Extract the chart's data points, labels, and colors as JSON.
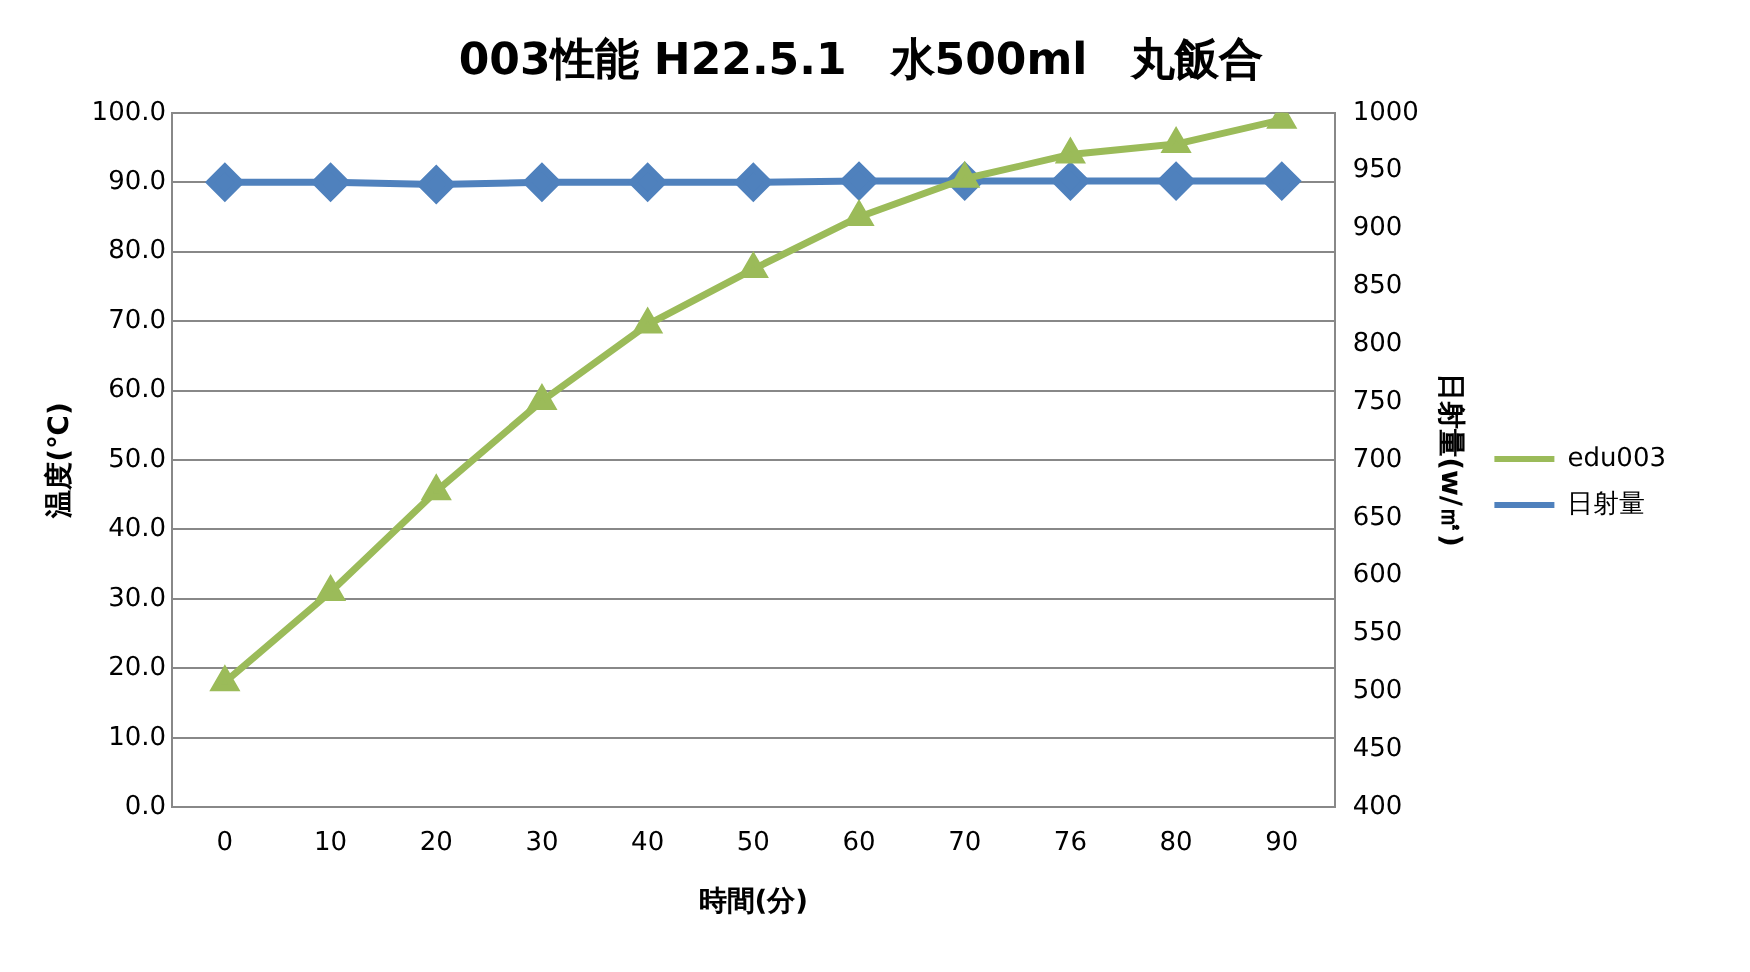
{
  "chart_data": {
    "type": "line",
    "title": "003性能 H22.5.1　水500ml　丸飯合",
    "xlabel": "時間(分)",
    "ylabel": "温度(℃)",
    "y2label": "日射量(w/㎡)",
    "categories": [
      "0",
      "10",
      "20",
      "30",
      "40",
      "50",
      "60",
      "70",
      "76",
      "80",
      "90"
    ],
    "series": [
      {
        "name": "edu003",
        "color": "#9bbb59",
        "marker": "triangle",
        "values": [
          18,
          31,
          45.5,
          58.5,
          69.5,
          77.5,
          85,
          90.5,
          94,
          95.5,
          99
        ]
      },
      {
        "name": "日射量",
        "color": "#4f81bd",
        "marker": "diamond",
        "axis": "y2",
        "values": [
          940,
          940,
          938,
          940,
          940,
          940,
          941,
          941,
          941,
          941,
          941
        ]
      }
    ],
    "ylim": [
      0,
      100
    ],
    "yticks": [
      {
        "value": 0,
        "label": "0.0"
      },
      {
        "value": 10,
        "label": "10.0"
      },
      {
        "value": 20,
        "label": "20.0"
      },
      {
        "value": 30,
        "label": "30.0"
      },
      {
        "value": 40,
        "label": "40.0"
      },
      {
        "value": 50,
        "label": "50.0"
      },
      {
        "value": 60,
        "label": "60.0"
      },
      {
        "value": 70,
        "label": "70.0"
      },
      {
        "value": 80,
        "label": "80.0"
      },
      {
        "value": 90,
        "label": "90.0"
      },
      {
        "value": 100,
        "label": "100.0"
      }
    ],
    "y2lim": [
      400,
      1000
    ],
    "y2ticks": [
      400,
      450,
      500,
      550,
      600,
      650,
      700,
      750,
      800,
      850,
      900,
      950,
      1000
    ],
    "grid": "y",
    "legend": "right",
    "line_style": "solid"
  }
}
